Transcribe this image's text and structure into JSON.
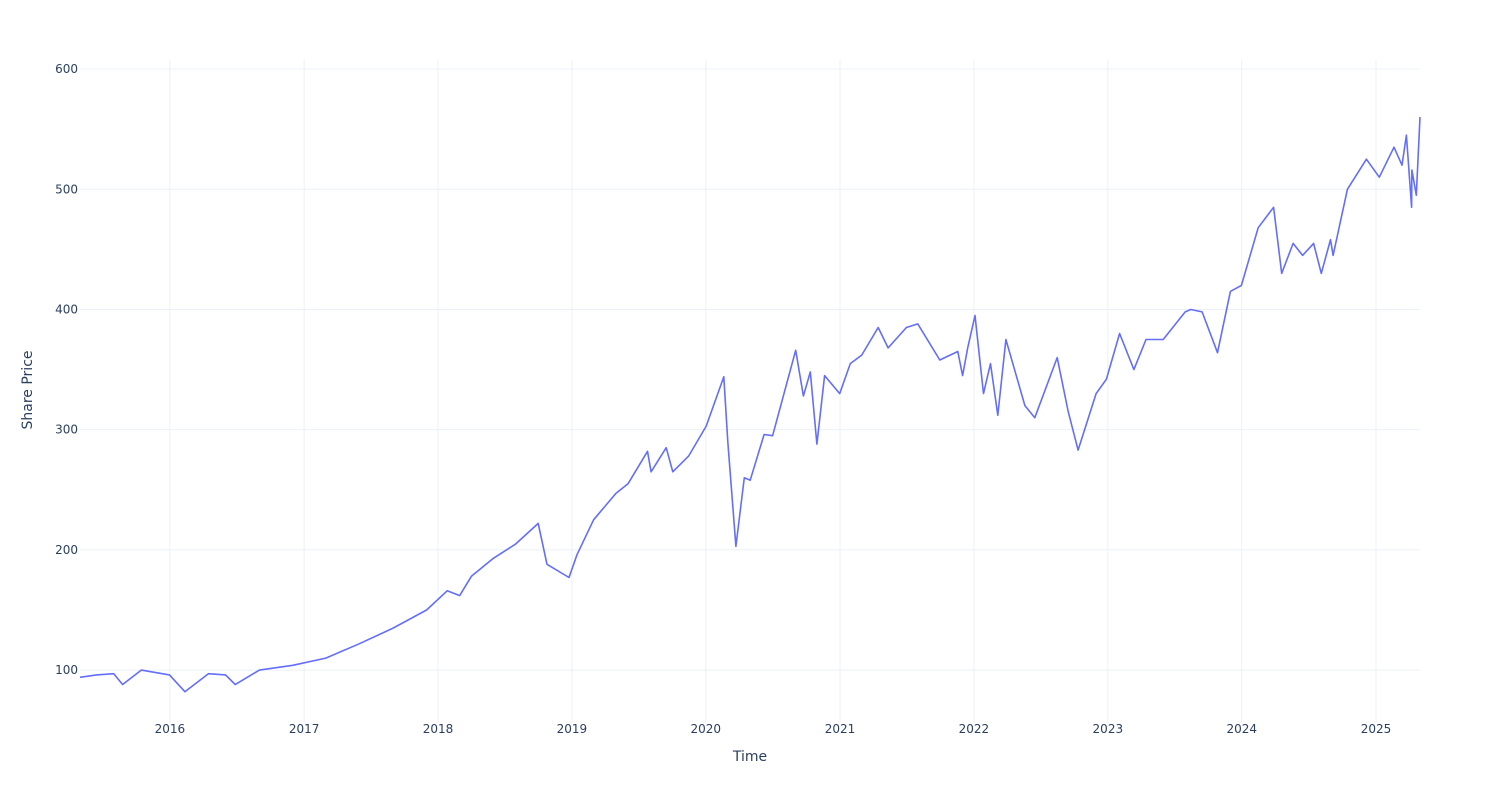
{
  "chart_data": {
    "type": "line",
    "xlabel": "Time",
    "ylabel": "Share Price",
    "xlim": [
      "2015-05-01",
      "2025-05-01"
    ],
    "ylim": [
      56,
      620
    ],
    "grid": true,
    "x_ticks": [
      "2016",
      "2017",
      "2018",
      "2019",
      "2020",
      "2021",
      "2022",
      "2023",
      "2024",
      "2025"
    ],
    "y_ticks": [
      100,
      200,
      300,
      400,
      500,
      600
    ],
    "series": [
      {
        "color": "#636efa",
        "x": [
          "2015-05-01",
          "2015-06-15",
          "2015-08-01",
          "2015-08-25",
          "2015-10-15",
          "2015-12-31",
          "2016-02-11",
          "2016-04-15",
          "2016-06-01",
          "2016-06-27",
          "2016-09-01",
          "2016-12-01",
          "2017-03-01",
          "2017-06-01",
          "2017-09-01",
          "2017-12-01",
          "2018-01-26",
          "2018-03-01",
          "2018-04-02",
          "2018-06-01",
          "2018-08-01",
          "2018-10-01",
          "2018-10-25",
          "2018-12-24",
          "2019-01-15",
          "2019-03-01",
          "2019-05-01",
          "2019-06-03",
          "2019-07-26",
          "2019-08-05",
          "2019-09-15",
          "2019-10-03",
          "2019-11-15",
          "2020-01-02",
          "2020-02-19",
          "2020-03-01",
          "2020-03-23",
          "2020-04-15",
          "2020-05-01",
          "2020-06-08",
          "2020-07-01",
          "2020-09-02",
          "2020-09-23",
          "2020-10-12",
          "2020-10-30",
          "2020-11-20",
          "2020-12-31",
          "2021-01-29",
          "2021-03-01",
          "2021-04-15",
          "2021-05-12",
          "2021-07-01",
          "2021-08-01",
          "2021-09-30",
          "2021-11-18",
          "2021-12-01",
          "2021-12-15",
          "2022-01-04",
          "2022-01-27",
          "2022-02-15",
          "2022-03-07",
          "2022-03-29",
          "2022-05-20",
          "2022-06-16",
          "2022-08-16",
          "2022-09-15",
          "2022-10-12",
          "2022-11-30",
          "2022-12-28",
          "2023-02-02",
          "2023-03-13",
          "2023-04-15",
          "2023-06-01",
          "2023-07-31",
          "2023-08-15",
          "2023-09-15",
          "2023-10-27",
          "2023-12-01",
          "2023-12-31",
          "2024-02-15",
          "2024-03-28",
          "2024-04-19",
          "2024-05-20",
          "2024-06-15",
          "2024-07-15",
          "2024-08-05",
          "2024-08-30",
          "2024-09-06",
          "2024-10-15",
          "2024-12-06",
          "2025-01-10",
          "2025-02-19",
          "2025-03-13",
          "2025-03-25",
          "2025-04-08",
          "2025-04-09",
          "2025-04-21",
          "2025-05-01"
        ],
        "y": [
          94,
          96,
          97,
          88,
          100,
          96,
          82,
          97,
          96,
          88,
          100,
          104,
          110,
          122,
          135,
          150,
          166,
          162,
          178,
          193,
          205,
          222,
          188,
          177,
          196,
          225,
          247,
          255,
          282,
          265,
          285,
          265,
          278,
          303,
          344,
          290,
          203,
          260,
          258,
          296,
          295,
          366,
          328,
          348,
          288,
          345,
          330,
          355,
          362,
          385,
          368,
          385,
          388,
          358,
          365,
          345,
          368,
          395,
          330,
          355,
          312,
          375,
          320,
          310,
          360,
          315,
          283,
          330,
          342,
          380,
          350,
          375,
          375,
          398,
          400,
          398,
          364,
          415,
          420,
          468,
          485,
          430,
          455,
          445,
          455,
          430,
          458,
          445,
          500,
          525,
          510,
          535,
          520,
          545,
          485,
          516,
          495,
          560
        ]
      }
    ]
  }
}
